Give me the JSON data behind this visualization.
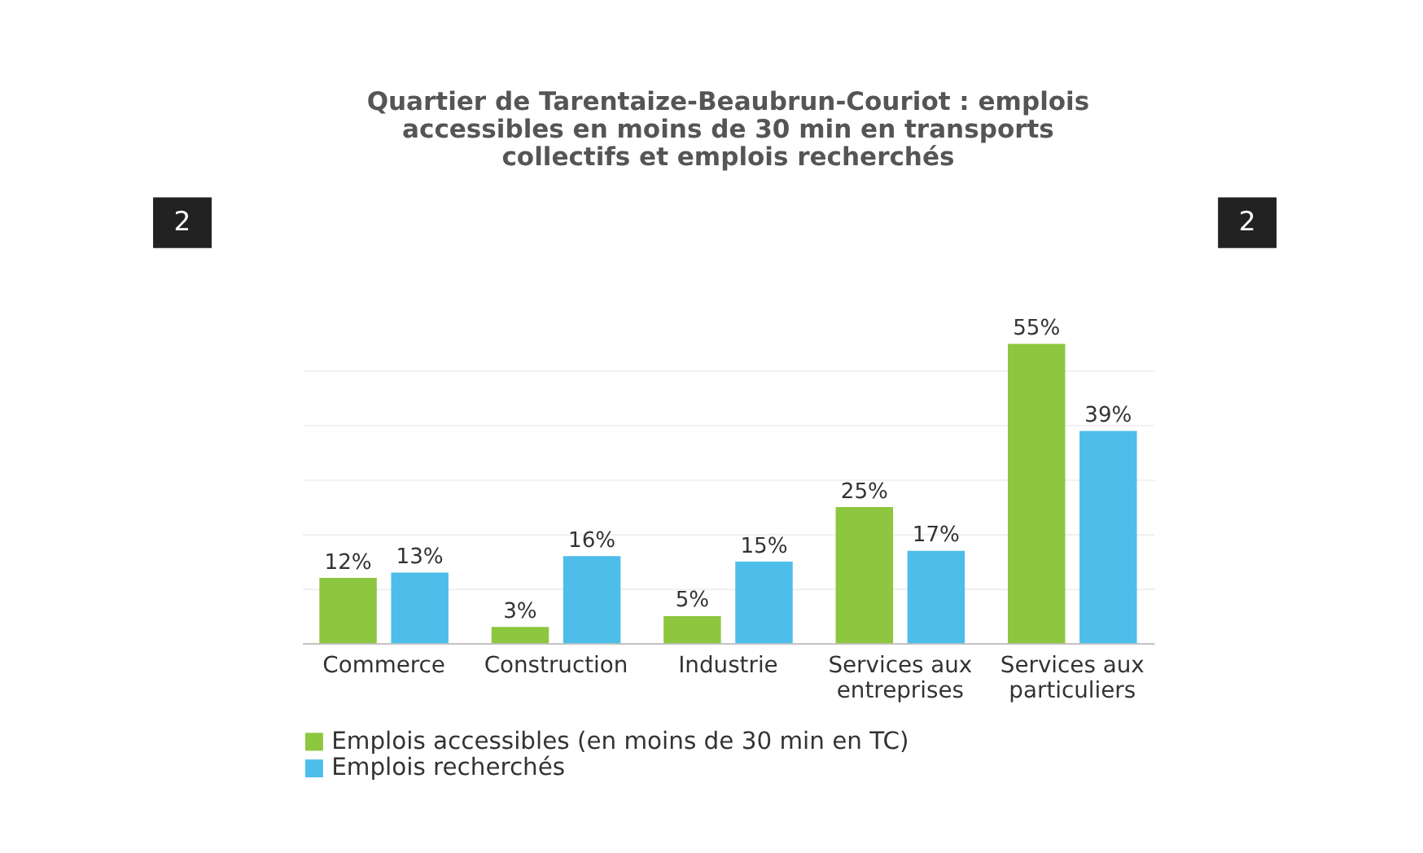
{
  "chart_data": {
    "type": "bar",
    "title": "Quartier de Tarentaize-Beaubrun-Couriot : emplois accessibles en moins de 30 min en transports collectifs et emplois recherchés",
    "categories": [
      "Commerce",
      "Construction",
      "Industrie",
      "Services aux entreprises",
      "Services aux particuliers"
    ],
    "series": [
      {
        "name": "Emplois accessibles (en moins de 30 min en TC)",
        "color": "#8dc63f",
        "values": [
          12,
          3,
          5,
          25,
          55
        ],
        "value_labels": [
          "12%",
          "3%",
          "5%",
          "25%",
          "55%"
        ]
      },
      {
        "name": "Emplois recherchés",
        "color": "#4dbde9",
        "values": [
          13,
          16,
          15,
          17,
          39
        ],
        "value_labels": [
          "13%",
          "16%",
          "15%",
          "17%",
          "39%"
        ]
      }
    ],
    "tick_labels": "x",
    "grid": "y",
    "legend": "bottom left",
    "annotations": [
      "2",
      "2"
    ]
  }
}
